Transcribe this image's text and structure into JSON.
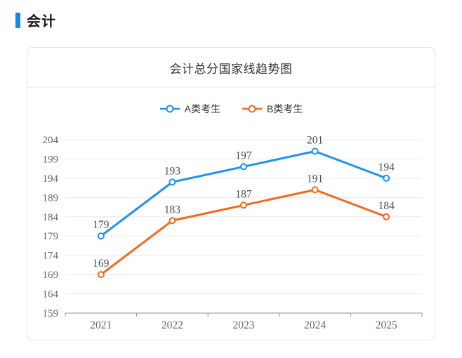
{
  "page": {
    "header": "会计",
    "accent_color": "#1787ee"
  },
  "card": {
    "title": "会计总分国家线趋势图"
  },
  "chart_data": {
    "type": "line",
    "title": "会计总分国家线趋势图",
    "categories": [
      "2021",
      "2022",
      "2023",
      "2024",
      "2025"
    ],
    "series": [
      {
        "name": "A类考生",
        "color": "#2090ee",
        "values": [
          179,
          193,
          197,
          201,
          194
        ]
      },
      {
        "name": "B类考生",
        "color": "#f2691d",
        "values": [
          169,
          183,
          187,
          191,
          184
        ]
      }
    ],
    "ylim": [
      159,
      204
    ],
    "ytick_step": 5,
    "grid": true,
    "legend_position": "top",
    "marker": "empty-circle",
    "show_data_labels": true,
    "colors": {
      "grid": "#e8eaed",
      "axis": "#8f8f8f",
      "tick_label": "#666666",
      "data_label": "#4c4c4c"
    }
  }
}
